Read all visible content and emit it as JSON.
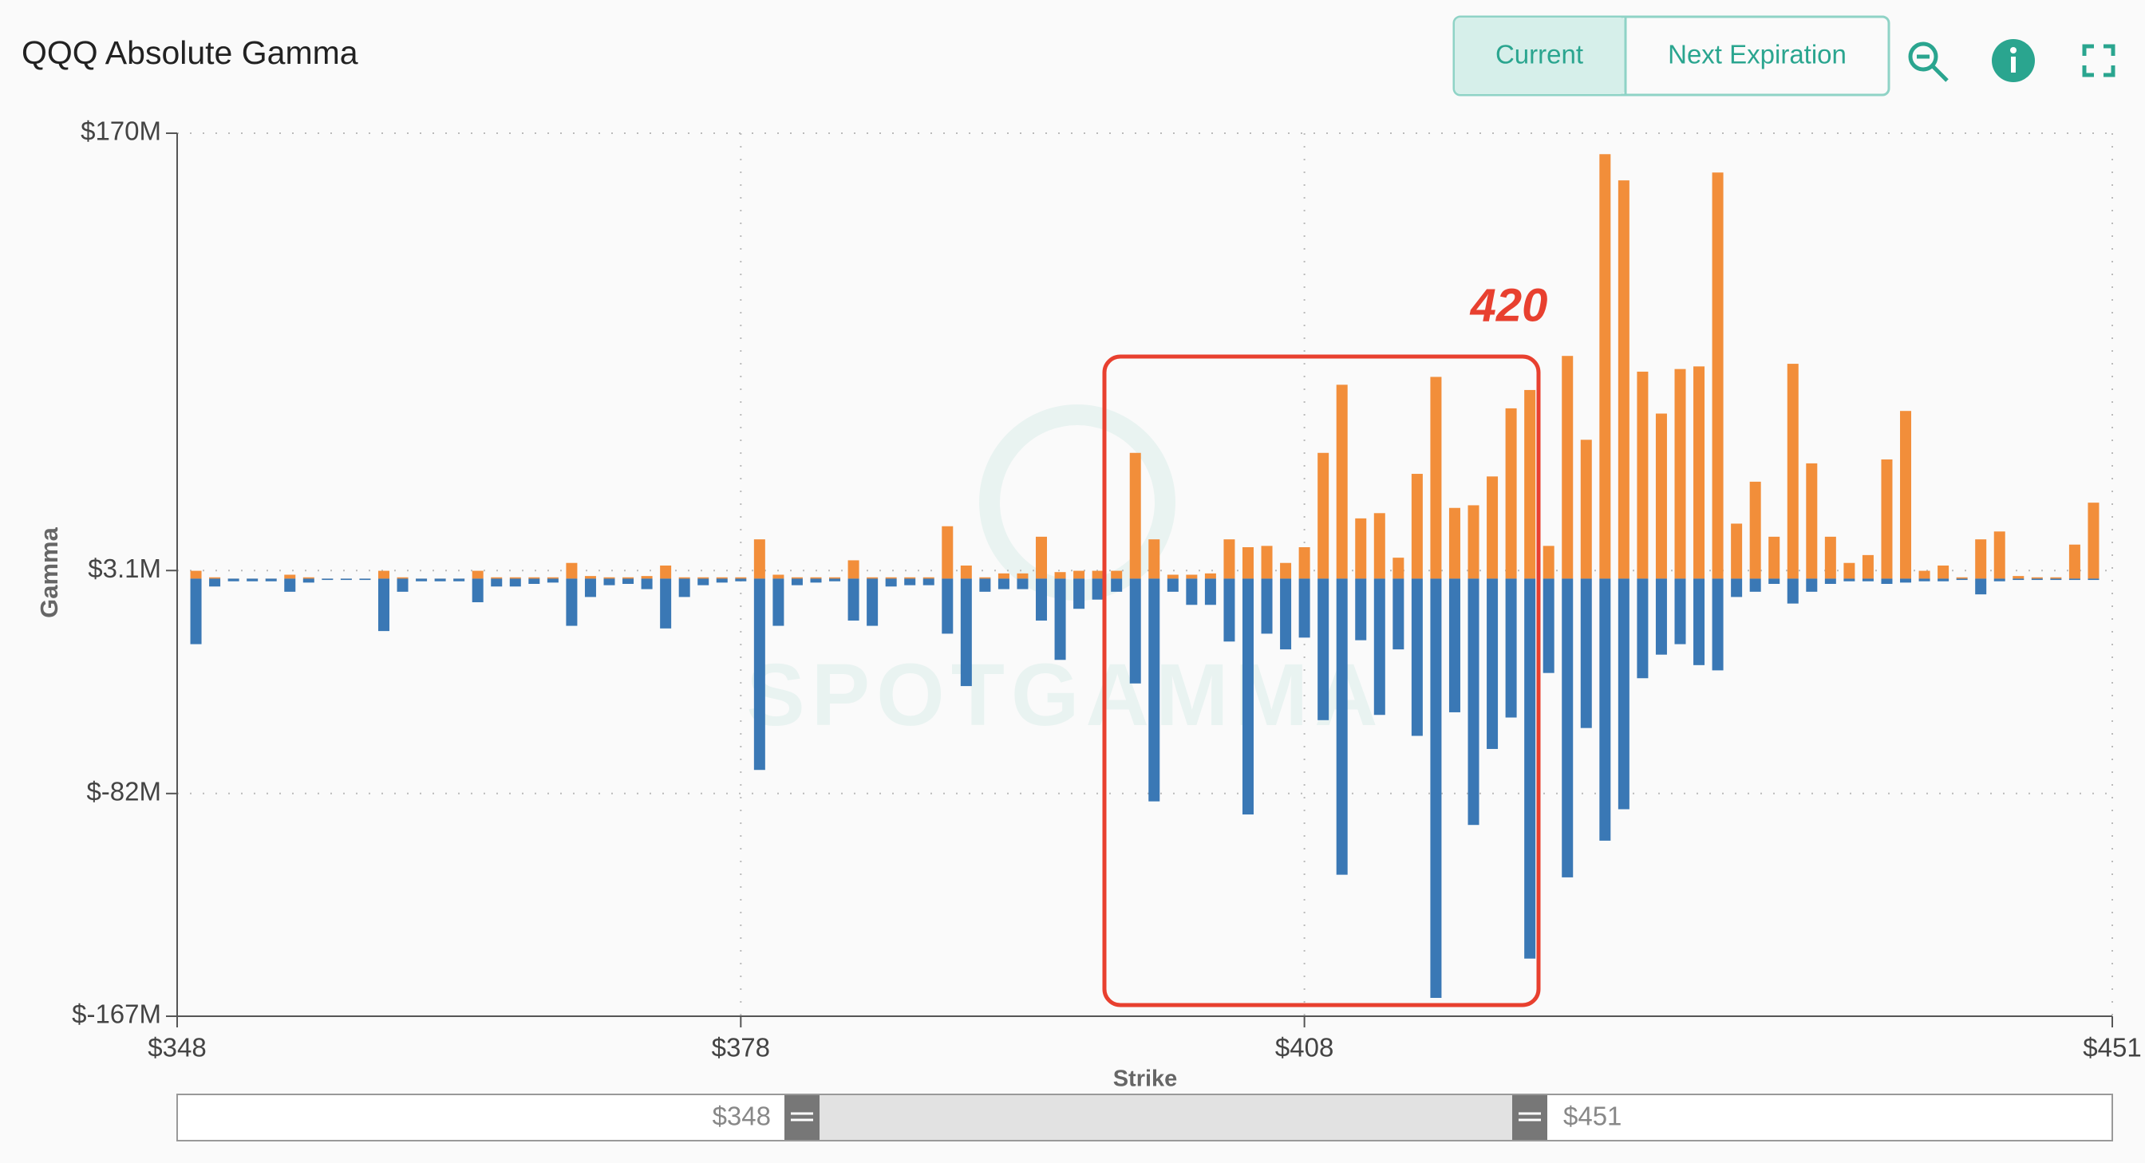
{
  "header": {
    "title": "QQQ Absolute Gamma",
    "buttons": [
      "Current",
      "Next Expiration"
    ]
  },
  "chart_data": {
    "type": "bar",
    "watermark": "SPOTGAMMA",
    "annotation": "420",
    "xlabel": "Strike",
    "ylabel": "Gamma",
    "xlim": [
      348,
      451
    ],
    "xticks": [
      {
        "value": 348,
        "label": "$348"
      },
      {
        "value": 378,
        "label": "$378"
      },
      {
        "value": 408,
        "label": "$408"
      },
      {
        "value": 451,
        "label": "$451"
      }
    ],
    "ylim": [
      -167,
      170
    ],
    "yticks": [
      {
        "value": -167,
        "label": "$-167M"
      },
      {
        "value": -82,
        "label": "$-82M"
      },
      {
        "value": 3.1,
        "label": "$3.1M"
      },
      {
        "value": 170,
        "label": "$170M"
      }
    ],
    "grid": true,
    "x": [
      349,
      350,
      351,
      352,
      353,
      354,
      355,
      356,
      357,
      358,
      359,
      360,
      361,
      362,
      363,
      364,
      365,
      366,
      367,
      368,
      369,
      370,
      371,
      372,
      373,
      374,
      375,
      376,
      377,
      378,
      379,
      380,
      381,
      382,
      383,
      384,
      385,
      386,
      387,
      388,
      389,
      390,
      391,
      392,
      393,
      394,
      395,
      396,
      397,
      398,
      399,
      400,
      401,
      402,
      403,
      404,
      405,
      406,
      407,
      408,
      409,
      410,
      411,
      412,
      413,
      414,
      415,
      416,
      417,
      418,
      419,
      420,
      421,
      422,
      423,
      424,
      425,
      426,
      427,
      428,
      429,
      430,
      431,
      432,
      433,
      434,
      435,
      436,
      437,
      438,
      439,
      440,
      441,
      442,
      443,
      444,
      445,
      446,
      447,
      448,
      449,
      450
    ],
    "series": [
      {
        "color": "#f28e3a",
        "values": [
          3,
          0.5,
          0,
          0,
          0,
          1.5,
          0.5,
          0,
          0,
          0,
          3,
          0.5,
          0,
          0,
          0,
          3,
          0.5,
          0.5,
          0.5,
          0.5,
          6,
          1,
          0.5,
          0.5,
          1,
          5,
          0.5,
          0.5,
          0.5,
          0.5,
          15,
          1.5,
          0.5,
          0.5,
          0.5,
          7,
          0.5,
          0.5,
          0.5,
          0.5,
          20,
          5,
          0.5,
          2,
          2,
          16,
          2.5,
          3,
          3,
          3,
          48,
          15,
          1.5,
          1.5,
          2,
          15,
          12,
          12.5,
          6,
          12,
          48,
          74,
          23,
          25,
          8,
          40,
          77,
          27,
          28,
          39,
          65,
          72,
          12.5,
          85,
          53,
          162,
          152,
          79,
          63,
          80,
          81,
          155,
          21,
          37,
          16,
          82,
          44,
          16,
          6,
          9,
          45.5,
          64,
          3,
          5,
          0.5,
          15,
          18,
          1,
          0.5,
          0.5,
          13,
          29
        ]
      },
      {
        "color": "#3a78b5",
        "values": [
          -25,
          -3,
          -1,
          -1,
          -1,
          -5,
          -1.5,
          -0.5,
          -0.5,
          -0.5,
          -20,
          -5,
          -1,
          -1,
          -1,
          -9,
          -3,
          -3,
          -2,
          -1.5,
          -18,
          -7,
          -2.5,
          -2,
          -4,
          -19,
          -7,
          -2.5,
          -1.5,
          -1,
          -73,
          -18,
          -2.5,
          -1.5,
          -1,
          -16,
          -18,
          -3,
          -2.5,
          -2.5,
          -21,
          -41,
          -5,
          -4,
          -4,
          -16,
          -31,
          -11.5,
          -8,
          -5,
          -40,
          -85,
          -5,
          -10,
          -10,
          -24,
          -90,
          -21,
          -27,
          -22.5,
          -54,
          -113,
          -23.5,
          -52,
          -27,
          -60,
          -160,
          -51,
          -94,
          -65,
          -53,
          -145,
          -36,
          -114,
          -57,
          -100,
          -88,
          -38,
          -29,
          -25,
          -33,
          -35,
          -7,
          -5,
          -2,
          -9.5,
          -5,
          -2,
          -1,
          -1,
          -2,
          -1.5,
          -1,
          -1,
          -0.5,
          -6,
          -1,
          -0.5,
          -0.5,
          -0.5,
          -0.5,
          -0.5
        ]
      }
    ]
  },
  "range_slider": {
    "from": "$348",
    "to": "$451"
  }
}
